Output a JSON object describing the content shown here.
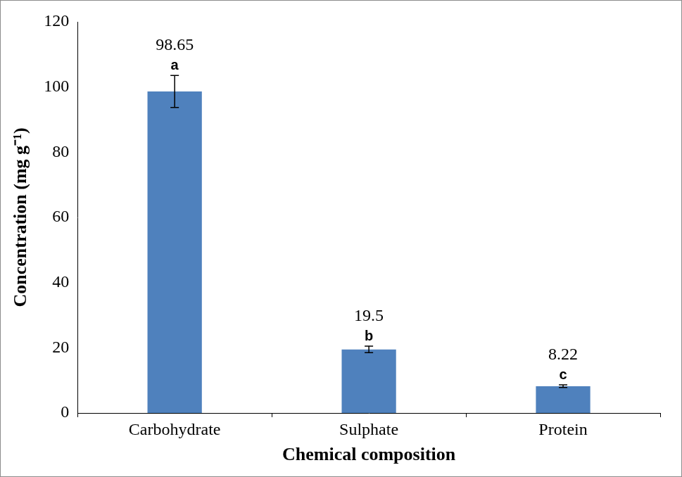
{
  "chart_data": {
    "type": "bar",
    "x_label": "Chemical composition",
    "y_label": "Concentration (mg g⁻¹)",
    "categories": [
      "Carbohydrate",
      "Sulphate",
      "Protein"
    ],
    "values": [
      98.65,
      19.5,
      8.22
    ],
    "errors": [
      4.9,
      1.0,
      0.4
    ],
    "annotations": [
      "a",
      "b",
      "c"
    ],
    "color": "#4f81bd",
    "ylim": [
      0,
      120
    ],
    "yticks": [
      0,
      20,
      40,
      60,
      80,
      100,
      120
    ],
    "grid": false,
    "data_labels": true
  }
}
